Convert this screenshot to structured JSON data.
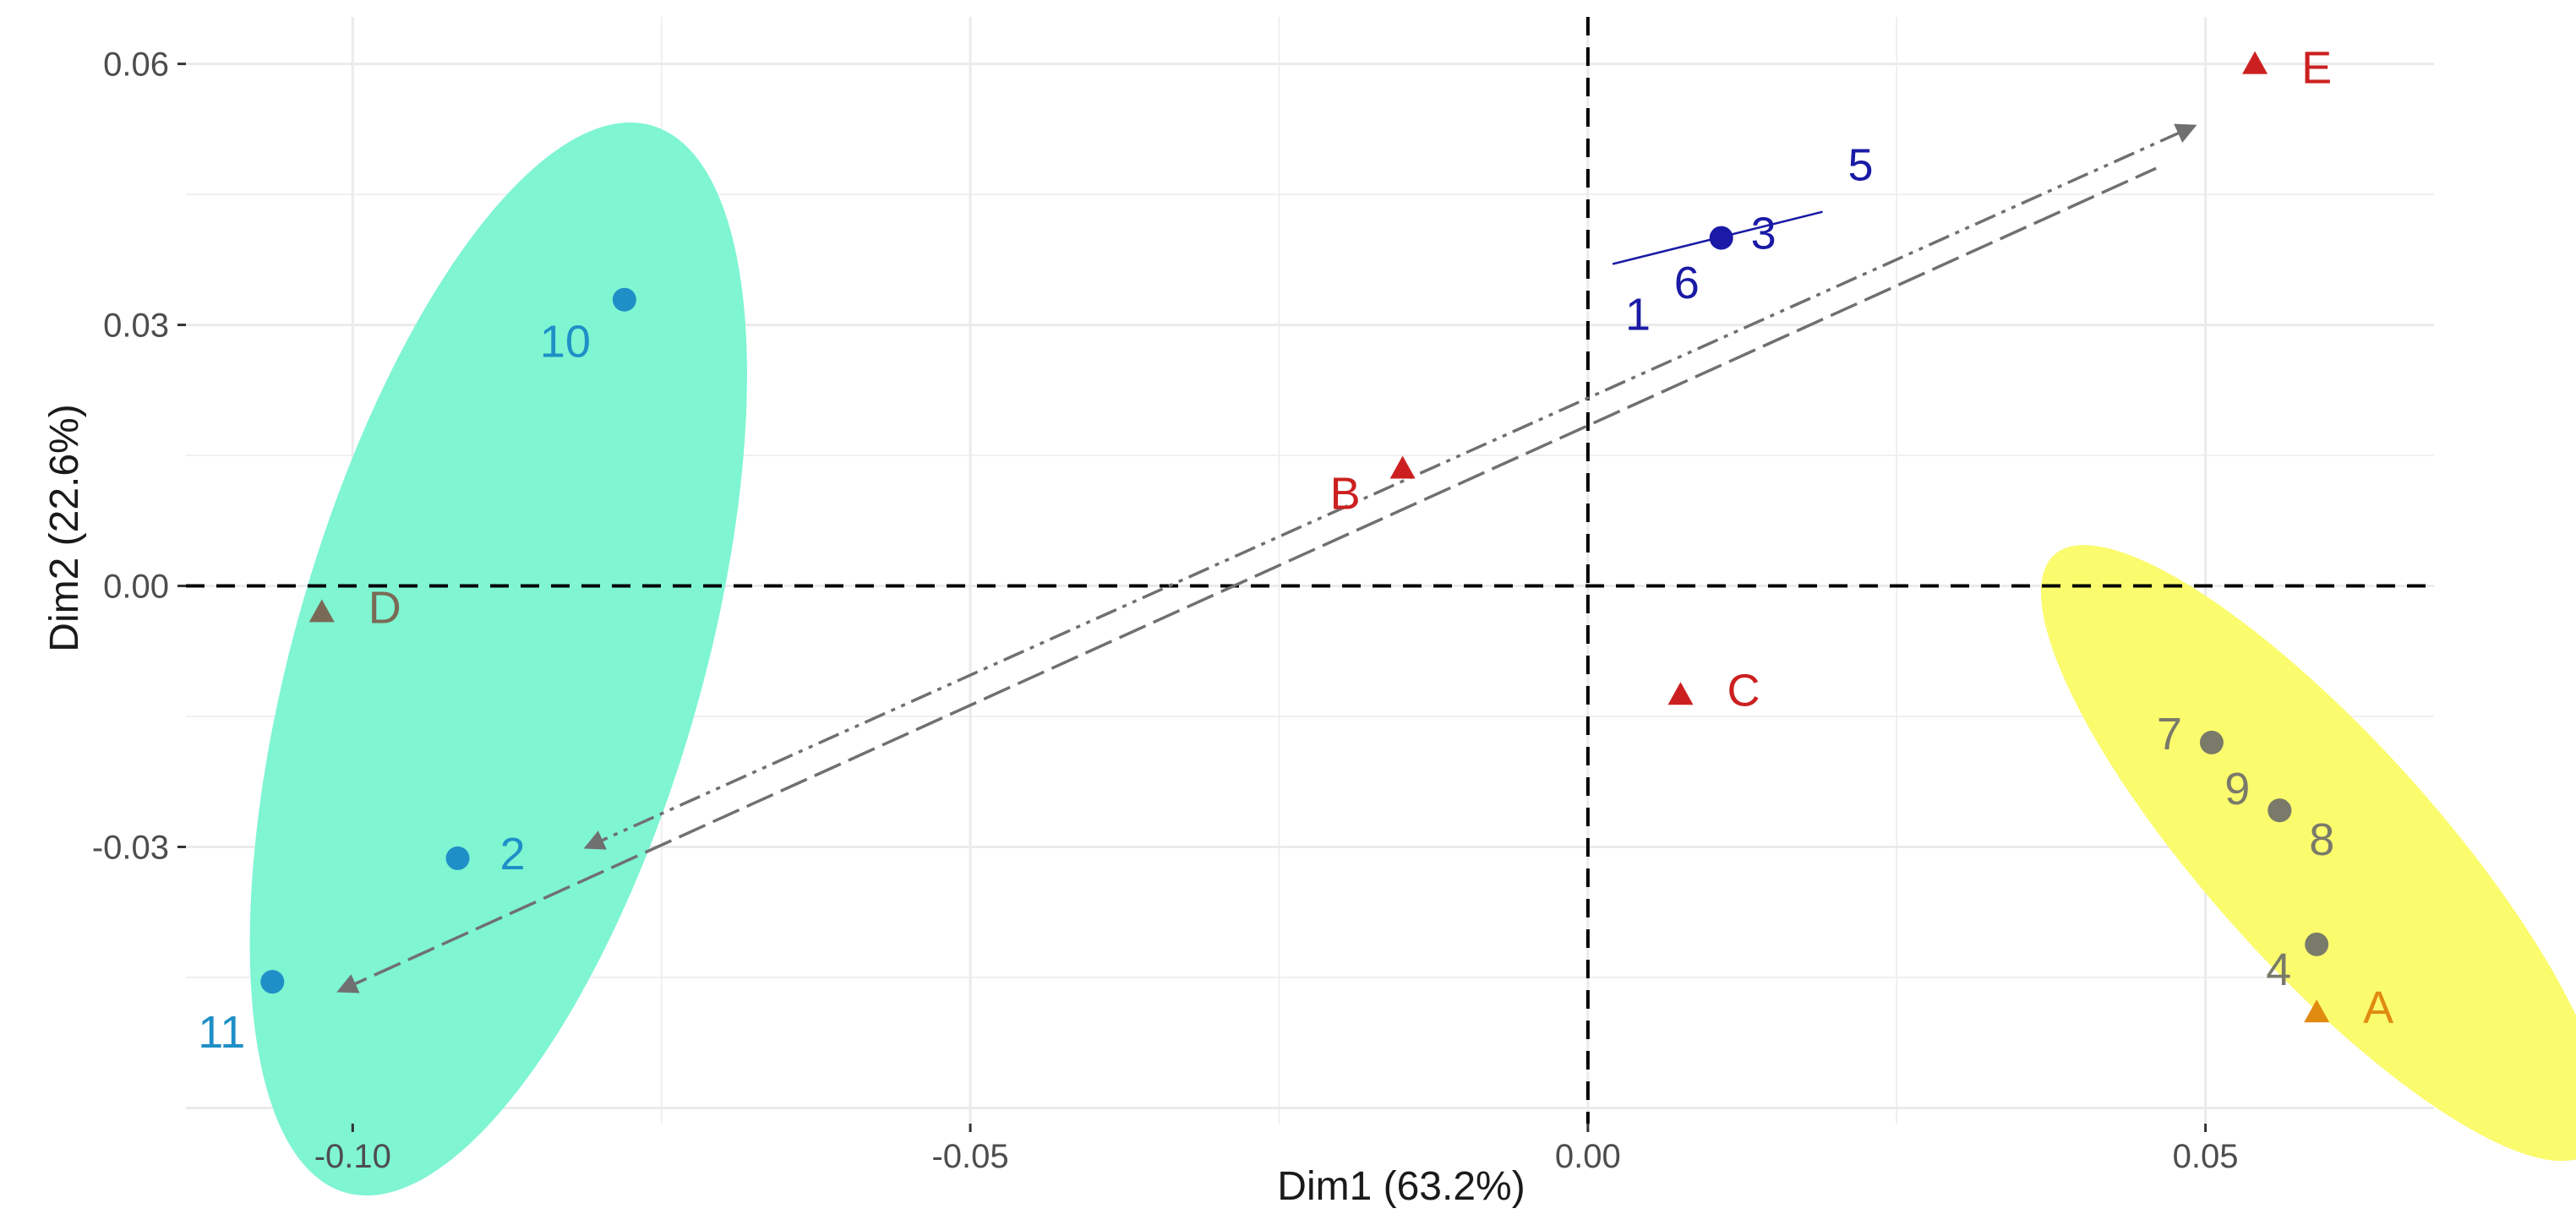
{
  "chart_data": {
    "type": "scatter",
    "xlabel": "Dim1 (63.2%)",
    "ylabel": "Dim2 (22.6%)",
    "xlim": [
      -0.1135,
      0.0685
    ],
    "ylim": [
      -0.0618,
      0.0654
    ],
    "x_ticks": [
      {
        "value": -0.1,
        "label": "-0.10"
      },
      {
        "value": -0.05,
        "label": "-0.05"
      },
      {
        "value": 0.0,
        "label": "0.00"
      },
      {
        "value": 0.05,
        "label": "0.05"
      }
    ],
    "y_ticks": [
      {
        "value": 0.06,
        "label": "0.06"
      },
      {
        "value": 0.03,
        "label": "0.03"
      },
      {
        "value": 0.0,
        "label": "0.00"
      },
      {
        "value": -0.03,
        "label": "-0.03"
      }
    ],
    "grid": true,
    "reference_lines": {
      "x": 0,
      "y": 0,
      "style": "dashed"
    },
    "colors": {
      "grid": "#ebebeb",
      "individuals_green": "#1f8fc7",
      "individuals_blue": "#1a1aa6",
      "individuals_gray": "#7a7a6a",
      "variables_red": "#cc2020",
      "variable_orange": "#e08a10",
      "variable_brown": "#7a6a55",
      "ellipse_green": "#7ff5d2",
      "ellipse_yellow": "#fbfb6e",
      "arrow": "#707070"
    },
    "ellipses": [
      {
        "name": "",
        "color": "#7ff5d2",
        "cx": -0.0882,
        "cy": -0.0084,
        "rx": 0.0165,
        "ry": 0.0638,
        "angle_deg": 16
      },
      {
        "name": "",
        "color": "#fbfb6e",
        "cx": 0.0595,
        "cy": -0.0307,
        "rx": 0.0325,
        "ry": 0.0132,
        "angle_deg": 48
      }
    ],
    "series": [
      {
        "marker": "circle",
        "points": [
          {
            "label": "10",
            "x": -0.078,
            "y": 0.0329,
            "color": "#1f8fc7"
          },
          {
            "label": "2",
            "x": -0.0915,
            "y": -0.0313,
            "color": "#1f8fc7"
          },
          {
            "label": "11",
            "x": -0.1065,
            "y": -0.0455,
            "color": "#1f8fc7"
          },
          {
            "label": "1",
            "x": 0.002,
            "y": 0.037,
            "color": "#1a1aa6"
          },
          {
            "label": "6",
            "x": 0.008,
            "y": 0.0385,
            "color": "#1a1aa6"
          },
          {
            "label": "3",
            "x": 0.0108,
            "y": 0.04,
            "color": "#1a1aa6"
          },
          {
            "label": "5",
            "x": 0.019,
            "y": 0.043,
            "color": "#1a1aa6"
          },
          {
            "label": "7",
            "x": 0.0505,
            "y": -0.018,
            "color": "#7a7a6a"
          },
          {
            "label": "9",
            "x": 0.056,
            "y": -0.0258,
            "color": "#7a7a6a"
          },
          {
            "label": "8",
            "x": 0.056,
            "y": -0.0258,
            "color": "#7a7a6a"
          },
          {
            "label": "4",
            "x": 0.059,
            "y": -0.0412,
            "color": "#7a7a6a"
          }
        ]
      },
      {
        "marker": "triangle",
        "points": [
          {
            "label": "E",
            "x": 0.054,
            "y": 0.06,
            "color": "#cc2020"
          },
          {
            "label": "B",
            "x": -0.015,
            "y": 0.0135,
            "color": "#cc2020"
          },
          {
            "label": "C",
            "x": 0.0075,
            "y": -0.0125,
            "color": "#cc2020"
          },
          {
            "label": "D",
            "x": -0.1025,
            "y": -0.003,
            "color": "#7a6a55"
          },
          {
            "label": "A",
            "x": 0.059,
            "y": -0.049,
            "color": "#e08a10"
          }
        ]
      }
    ],
    "arrows": [
      {
        "from": [
          -0.081,
          -0.03
        ],
        "to": [
          0.049,
          0.0528
        ],
        "style": "dash-dot-dot",
        "heads": "both"
      },
      {
        "from": [
          -0.101,
          -0.0465
        ],
        "to": [
          0.046,
          0.048
        ],
        "style": "long-dash",
        "heads": "start"
      }
    ]
  }
}
